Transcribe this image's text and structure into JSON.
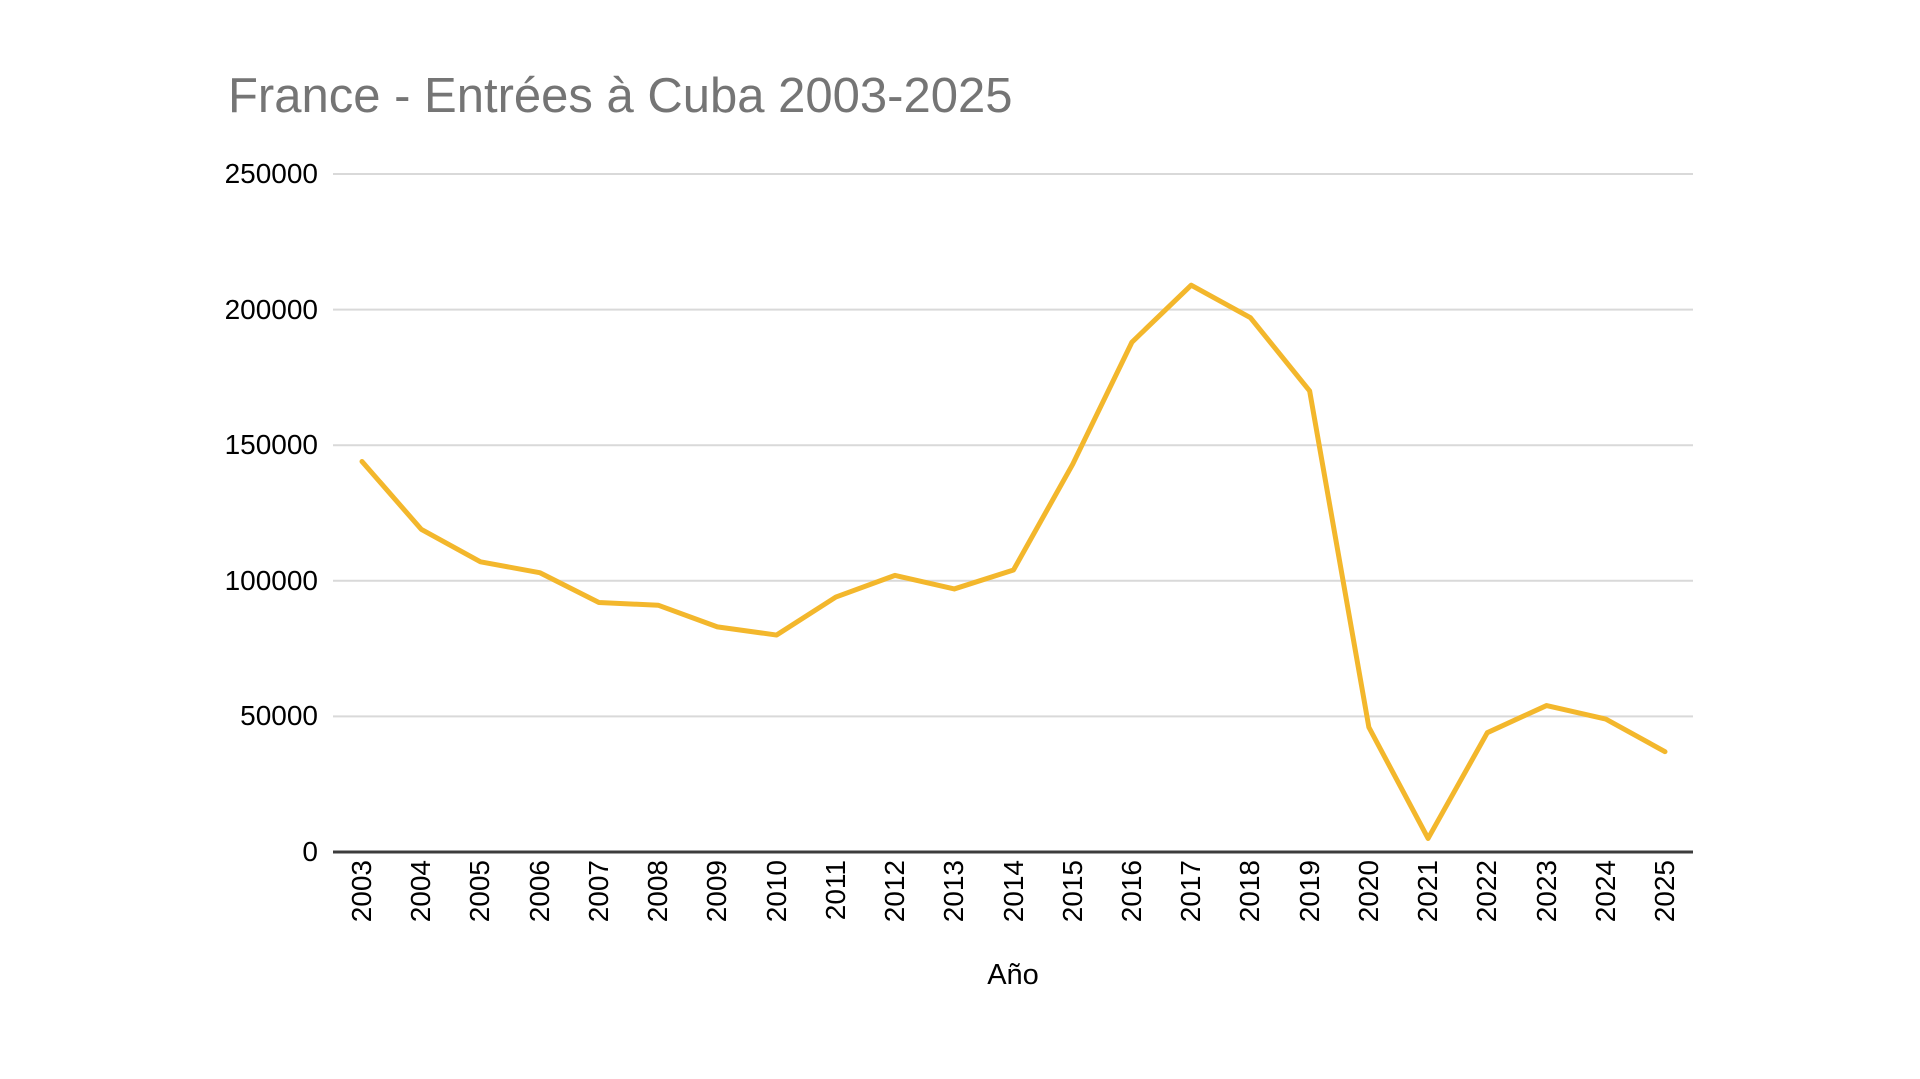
{
  "page": {
    "background_color": "#FFFFFF"
  },
  "chart_data": {
    "type": "line",
    "title": "France - Entrées à Cuba 2003-2025",
    "xlabel": "Año",
    "ylabel": "",
    "categories": [
      "2003",
      "2004",
      "2005",
      "2006",
      "2007",
      "2008",
      "2009",
      "2010",
      "2011",
      "2012",
      "2013",
      "2014",
      "2015",
      "2016",
      "2017",
      "2018",
      "2019",
      "2020",
      "2021",
      "2022",
      "2023",
      "2024",
      "2025"
    ],
    "values": [
      144000,
      119000,
      107000,
      103000,
      92000,
      91000,
      83000,
      80000,
      94000,
      102000,
      97000,
      104000,
      143000,
      188000,
      209000,
      197000,
      170000,
      46000,
      5000,
      44000,
      54000,
      49000,
      37000
    ],
    "ylim": [
      0,
      250000
    ],
    "yticks": [
      0,
      50000,
      100000,
      150000,
      200000,
      250000
    ],
    "grid": true,
    "legend": "none",
    "x_tick_rotation_deg": -90,
    "colors": {
      "line": "#F3B72C",
      "title_text": "#757575",
      "tick_text": "#000000",
      "gridline": "#D9D9D9",
      "axis_line": "#3C3C3C",
      "background": "#FFFFFF"
    }
  }
}
